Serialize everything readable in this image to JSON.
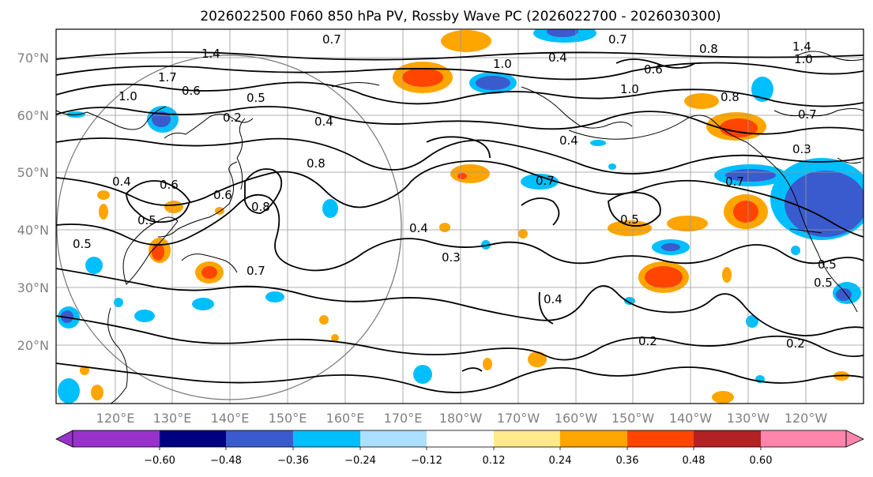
{
  "title": "2026022500 F060 850 hPa PV, Rossby Wave PC (2026022700 - 2026030300)",
  "lat_ticks": [
    "70°N",
    "60°N",
    "50°N",
    "40°N",
    "30°N",
    "20°N"
  ],
  "lon_ticks": [
    "120°E",
    "130°E",
    "140°E",
    "150°E",
    "160°E",
    "170°E",
    "180°W",
    "170°W",
    "160°W",
    "150°W",
    "140°W",
    "130°W",
    "120°W"
  ],
  "colorbar": {
    "colors": [
      "#9932CC",
      "#000080",
      "#3A5BCD",
      "#00BFFF",
      "#ADDFFF",
      "#FFFFFF",
      "#FFE98A",
      "#FFA500",
      "#FF4500",
      "#B22222",
      "#FF85AD"
    ],
    "tick_labels": [
      "−0.60",
      "−0.48",
      "−0.36",
      "−0.24",
      "−0.12",
      "0.12",
      "0.24",
      "0.36",
      "0.48",
      "0.60"
    ]
  },
  "contour_labels": [
    {
      "text": "0.7"
    },
    {
      "text": "1.4"
    },
    {
      "text": "1.0"
    },
    {
      "text": "1.7"
    },
    {
      "text": "0.6"
    },
    {
      "text": "0.5"
    },
    {
      "text": "0.2"
    },
    {
      "text": "0.4"
    },
    {
      "text": "0.8"
    },
    {
      "text": "0.4"
    },
    {
      "text": "0.6"
    },
    {
      "text": "0.5"
    },
    {
      "text": "0.5"
    },
    {
      "text": "0.6"
    },
    {
      "text": "0.8"
    },
    {
      "text": "0.7"
    },
    {
      "text": "0.4"
    },
    {
      "text": "0.3"
    },
    {
      "text": "1.0"
    },
    {
      "text": "0.4"
    },
    {
      "text": "1.0"
    },
    {
      "text": "0.6"
    },
    {
      "text": "0.8"
    },
    {
      "text": "0.7"
    },
    {
      "text": "0.7"
    },
    {
      "text": "0.5"
    },
    {
      "text": "0.4"
    },
    {
      "text": "0.2"
    },
    {
      "text": "0.8"
    },
    {
      "text": "0.7"
    },
    {
      "text": "0.3"
    },
    {
      "text": "0.2"
    },
    {
      "text": "0.4"
    },
    {
      "text": "0.5"
    },
    {
      "text": "1.0"
    },
    {
      "text": "0.5"
    },
    {
      "text": "1.4"
    },
    {
      "text": "0.7"
    }
  ],
  "colors": {
    "coast": "#000000",
    "grid": "#999999",
    "contour": "#000000",
    "circle": "#777777"
  }
}
